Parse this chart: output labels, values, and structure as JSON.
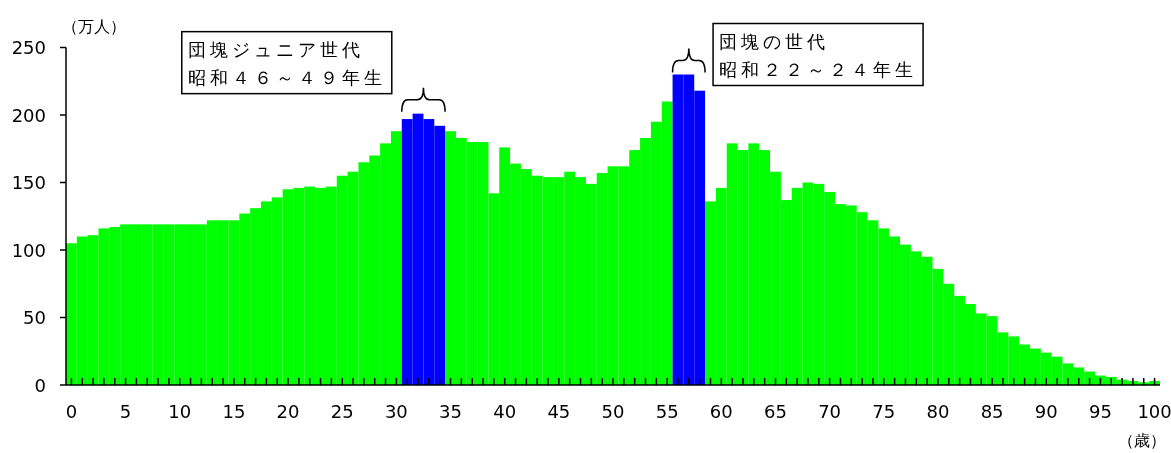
{
  "chart_data": {
    "type": "bar",
    "x": [
      0,
      1,
      2,
      3,
      4,
      5,
      6,
      7,
      8,
      9,
      10,
      11,
      12,
      13,
      14,
      15,
      16,
      17,
      18,
      19,
      20,
      21,
      22,
      23,
      24,
      25,
      26,
      27,
      28,
      29,
      30,
      31,
      32,
      33,
      34,
      35,
      36,
      37,
      38,
      39,
      40,
      41,
      42,
      43,
      44,
      45,
      46,
      47,
      48,
      49,
      50,
      51,
      52,
      53,
      54,
      55,
      56,
      57,
      58,
      59,
      60,
      61,
      62,
      63,
      64,
      65,
      66,
      67,
      68,
      69,
      70,
      71,
      72,
      73,
      74,
      75,
      76,
      77,
      78,
      79,
      80,
      81,
      82,
      83,
      84,
      85,
      86,
      87,
      88,
      89,
      90,
      91,
      92,
      93,
      94,
      95,
      96,
      97,
      98,
      99,
      100
    ],
    "values": [
      105,
      110,
      111,
      116,
      117,
      119,
      119,
      119,
      119,
      119,
      119,
      119,
      119,
      122,
      122,
      122,
      127,
      131,
      136,
      139,
      145,
      146,
      147,
      146,
      147,
      155,
      158,
      165,
      170,
      179,
      188,
      197,
      201,
      197,
      192,
      188,
      183,
      180,
      180,
      142,
      176,
      164,
      160,
      155,
      154,
      154,
      158,
      154,
      149,
      157,
      162,
      162,
      174,
      183,
      195,
      210,
      230,
      230,
      218,
      136,
      146,
      179,
      174,
      179,
      174,
      158,
      137,
      146,
      150,
      149,
      143,
      134,
      133,
      128,
      122,
      116,
      110,
      104,
      99,
      95,
      86,
      75,
      66,
      60,
      53,
      51,
      39,
      36,
      30,
      27,
      24,
      21,
      16,
      13,
      10,
      7,
      6,
      4,
      3,
      2,
      3
    ],
    "colors": [
      "#00ff00",
      "#00ff00",
      "#00ff00",
      "#00ff00",
      "#00ff00",
      "#00ff00",
      "#00ff00",
      "#00ff00",
      "#00ff00",
      "#00ff00",
      "#00ff00",
      "#00ff00",
      "#00ff00",
      "#00ff00",
      "#00ff00",
      "#00ff00",
      "#00ff00",
      "#00ff00",
      "#00ff00",
      "#00ff00",
      "#00ff00",
      "#00ff00",
      "#00ff00",
      "#00ff00",
      "#00ff00",
      "#00ff00",
      "#00ff00",
      "#00ff00",
      "#00ff00",
      "#00ff00",
      "#00ff00",
      "#0000ff",
      "#0000ff",
      "#0000ff",
      "#0000ff",
      "#00ff00",
      "#00ff00",
      "#00ff00",
      "#00ff00",
      "#00ff00",
      "#00ff00",
      "#00ff00",
      "#00ff00",
      "#00ff00",
      "#00ff00",
      "#00ff00",
      "#00ff00",
      "#00ff00",
      "#00ff00",
      "#00ff00",
      "#00ff00",
      "#00ff00",
      "#00ff00",
      "#00ff00",
      "#00ff00",
      "#00ff00",
      "#0000ff",
      "#0000ff",
      "#0000ff",
      "#00ff00",
      "#00ff00",
      "#00ff00",
      "#00ff00",
      "#00ff00",
      "#00ff00",
      "#00ff00",
      "#00ff00",
      "#00ff00",
      "#00ff00",
      "#00ff00",
      "#00ff00",
      "#00ff00",
      "#00ff00",
      "#00ff00",
      "#00ff00",
      "#00ff00",
      "#00ff00",
      "#00ff00",
      "#00ff00",
      "#00ff00",
      "#00ff00",
      "#00ff00",
      "#00ff00",
      "#00ff00",
      "#00ff00",
      "#00ff00",
      "#00ff00",
      "#00ff00",
      "#00ff00",
      "#00ff00",
      "#00ff00",
      "#00ff00",
      "#00ff00",
      "#00ff00",
      "#00ff00",
      "#00ff00",
      "#00ff00",
      "#00ff00",
      "#00ff00",
      "#00ff00",
      "#00ff00"
    ],
    "xlim": [
      -0.5,
      100.5
    ],
    "xticks": [
      0,
      {
        "value": 1,
        "label": null
      },
      {
        "value": 2,
        "label": null
      },
      {
        "value": 3,
        "label": null
      },
      {
        "value": 4,
        "label": null
      },
      5,
      {
        "value": 6,
        "label": null
      },
      {
        "value": 7,
        "label": null
      },
      {
        "value": 8,
        "label": null
      },
      {
        "value": 9,
        "label": null
      },
      10,
      {
        "value": 11,
        "label": null
      },
      {
        "value": 12,
        "label": null
      },
      {
        "value": 13,
        "label": null
      },
      {
        "value": 14,
        "label": null
      },
      15,
      {
        "value": 16,
        "label": null
      },
      {
        "value": 17,
        "label": null
      },
      {
        "value": 18,
        "label": null
      },
      {
        "value": 19,
        "label": null
      },
      20,
      {
        "value": 21,
        "label": null
      },
      {
        "value": 22,
        "label": null
      },
      {
        "value": 23,
        "label": null
      },
      {
        "value": 24,
        "label": null
      },
      25,
      {
        "value": 26,
        "label": null
      },
      {
        "value": 27,
        "label": null
      },
      {
        "value": 28,
        "label": null
      },
      {
        "value": 29,
        "label": null
      },
      30,
      {
        "value": 31,
        "label": null
      },
      {
        "value": 32,
        "label": null
      },
      {
        "value": 33,
        "label": null
      },
      {
        "value": 34,
        "label": null
      },
      35,
      {
        "value": 36,
        "label": null
      },
      {
        "value": 37,
        "label": null
      },
      {
        "value": 38,
        "label": null
      },
      {
        "value": 39,
        "label": null
      },
      40,
      {
        "value": 41,
        "label": null
      },
      {
        "value": 42,
        "label": null
      },
      {
        "value": 43,
        "label": null
      },
      {
        "value": 44,
        "label": null
      },
      45,
      {
        "value": 46,
        "label": null
      },
      {
        "value": 47,
        "label": null
      },
      {
        "value": 48,
        "label": null
      },
      {
        "value": 49,
        "label": null
      },
      50,
      {
        "value": 51,
        "label": null
      },
      {
        "value": 52,
        "label": null
      },
      {
        "value": 53,
        "label": null
      },
      {
        "value": 54,
        "label": null
      },
      55,
      {
        "value": 56,
        "label": null
      },
      {
        "value": 57,
        "label": null
      },
      {
        "value": 58,
        "label": null
      },
      {
        "value": 59,
        "label": null
      },
      60,
      {
        "value": 61,
        "label": null
      },
      {
        "value": 62,
        "label": null
      },
      {
        "value": 63,
        "label": null
      },
      {
        "value": 64,
        "label": null
      },
      65,
      {
        "value": 66,
        "label": null
      },
      {
        "value": 67,
        "label": null
      },
      {
        "value": 68,
        "label": null
      },
      {
        "value": 69,
        "label": null
      },
      70,
      {
        "value": 71,
        "label": null
      },
      {
        "value": 72,
        "label": null
      },
      {
        "value": 73,
        "label": null
      },
      {
        "value": 74,
        "label": null
      },
      75,
      {
        "value": 76,
        "label": null
      },
      {
        "value": 77,
        "label": null
      },
      {
        "value": 78,
        "label": null
      },
      {
        "value": 79,
        "label": null
      },
      80,
      {
        "value": 81,
        "label": null
      },
      {
        "value": 82,
        "label": null
      },
      {
        "value": 83,
        "label": null
      },
      {
        "value": 84,
        "label": null
      },
      85,
      {
        "value": 86,
        "label": null
      },
      {
        "value": 87,
        "label": null
      },
      {
        "value": 88,
        "label": null
      },
      {
        "value": 89,
        "label": null
      },
      90,
      {
        "value": 91,
        "label": null
      },
      {
        "value": 92,
        "label": null
      },
      {
        "value": 93,
        "label": null
      },
      {
        "value": 94,
        "label": null
      },
      95,
      {
        "value": 96,
        "label": null
      },
      {
        "value": 97,
        "label": null
      },
      {
        "value": 98,
        "label": null
      },
      {
        "value": 99,
        "label": null
      },
      100
    ],
    "ylim": [
      0,
      250
    ],
    "yticks": [
      0,
      50,
      100,
      150,
      200,
      250
    ],
    "ylabel": "（万人）",
    "xlabel": "（歳）",
    "annotations": [
      "団塊ジュニア世代",
      "昭和４６～４９年生",
      "団塊の世代",
      "昭和２２～２４年生"
    ]
  }
}
